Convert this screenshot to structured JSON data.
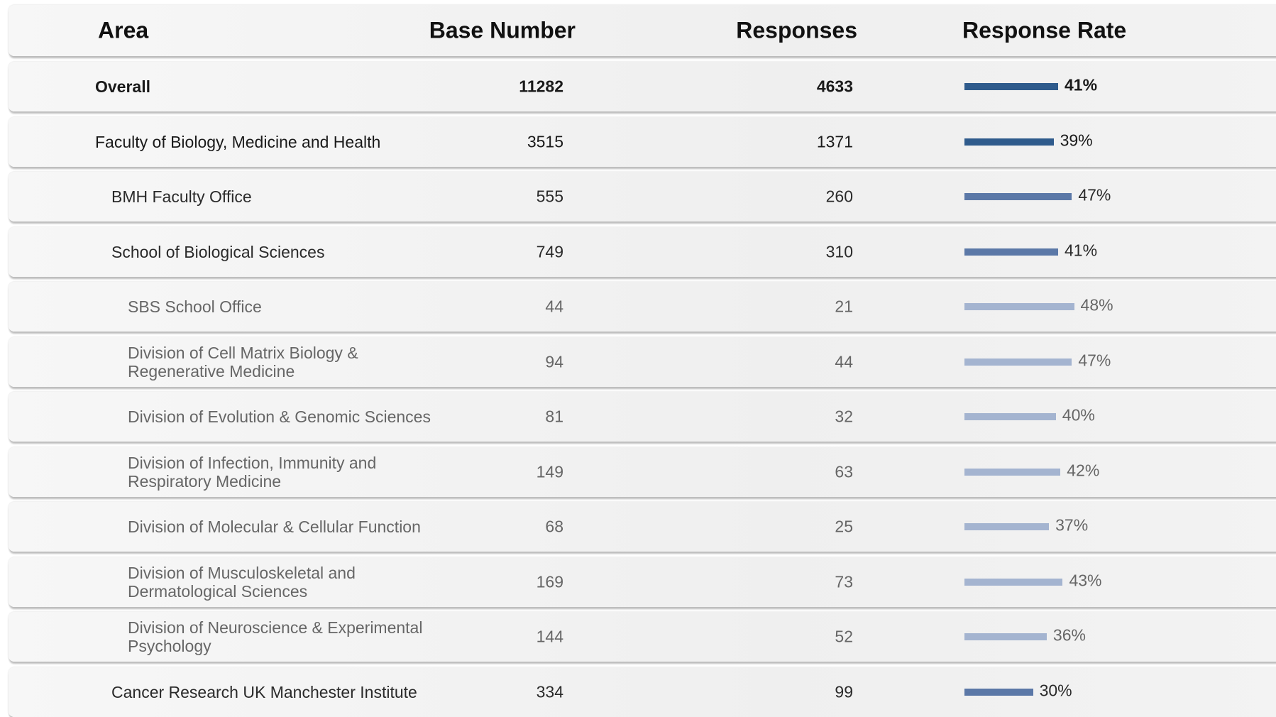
{
  "header": {
    "area": "Area",
    "base": "Base Number",
    "responses": "Responses",
    "rate": "Response Rate"
  },
  "level_colors": [
    "#2f5b8c",
    "#5b78a7",
    "#a4b4d0"
  ],
  "level_text_colors": [
    "#1a1a1a",
    "#2a2a2a",
    "#666666"
  ],
  "rows": [
    {
      "area": "Overall",
      "level": 0,
      "bold": true,
      "base": 11282,
      "responses": 4633,
      "rate": 41,
      "rate_label": "41%"
    },
    {
      "area": "Faculty of Biology, Medicine and Health",
      "level": 0,
      "bold": false,
      "base": 3515,
      "responses": 1371,
      "rate": 39,
      "rate_label": "39%"
    },
    {
      "area": "BMH Faculty Office",
      "level": 1,
      "bold": false,
      "base": 555,
      "responses": 260,
      "rate": 47,
      "rate_label": "47%"
    },
    {
      "area": "School of Biological Sciences",
      "level": 1,
      "bold": false,
      "base": 749,
      "responses": 310,
      "rate": 41,
      "rate_label": "41%"
    },
    {
      "area": "SBS School Office",
      "level": 2,
      "bold": false,
      "base": 44,
      "responses": 21,
      "rate": 48,
      "rate_label": "48%"
    },
    {
      "area": "Division of Cell Matrix Biology & Regenerative Medicine",
      "level": 2,
      "bold": false,
      "base": 94,
      "responses": 44,
      "rate": 47,
      "rate_label": "47%"
    },
    {
      "area": "Division of Evolution & Genomic Sciences",
      "level": 2,
      "bold": false,
      "base": 81,
      "responses": 32,
      "rate": 40,
      "rate_label": "40%"
    },
    {
      "area": "Division of Infection, Immunity and Respiratory Medicine",
      "level": 2,
      "bold": false,
      "base": 149,
      "responses": 63,
      "rate": 42,
      "rate_label": "42%"
    },
    {
      "area": "Division of Molecular & Cellular Function",
      "level": 2,
      "bold": false,
      "base": 68,
      "responses": 25,
      "rate": 37,
      "rate_label": "37%"
    },
    {
      "area": "Division of Musculoskeletal and Dermatological Sciences",
      "level": 2,
      "bold": false,
      "base": 169,
      "responses": 73,
      "rate": 43,
      "rate_label": "43%"
    },
    {
      "area": "Division of Neuroscience & Experimental Psychology",
      "level": 2,
      "bold": false,
      "base": 144,
      "responses": 52,
      "rate": 36,
      "rate_label": "36%"
    },
    {
      "area": "Cancer Research UK Manchester Institute",
      "level": 1,
      "bold": false,
      "base": 334,
      "responses": 99,
      "rate": 30,
      "rate_label": "30%"
    }
  ]
}
